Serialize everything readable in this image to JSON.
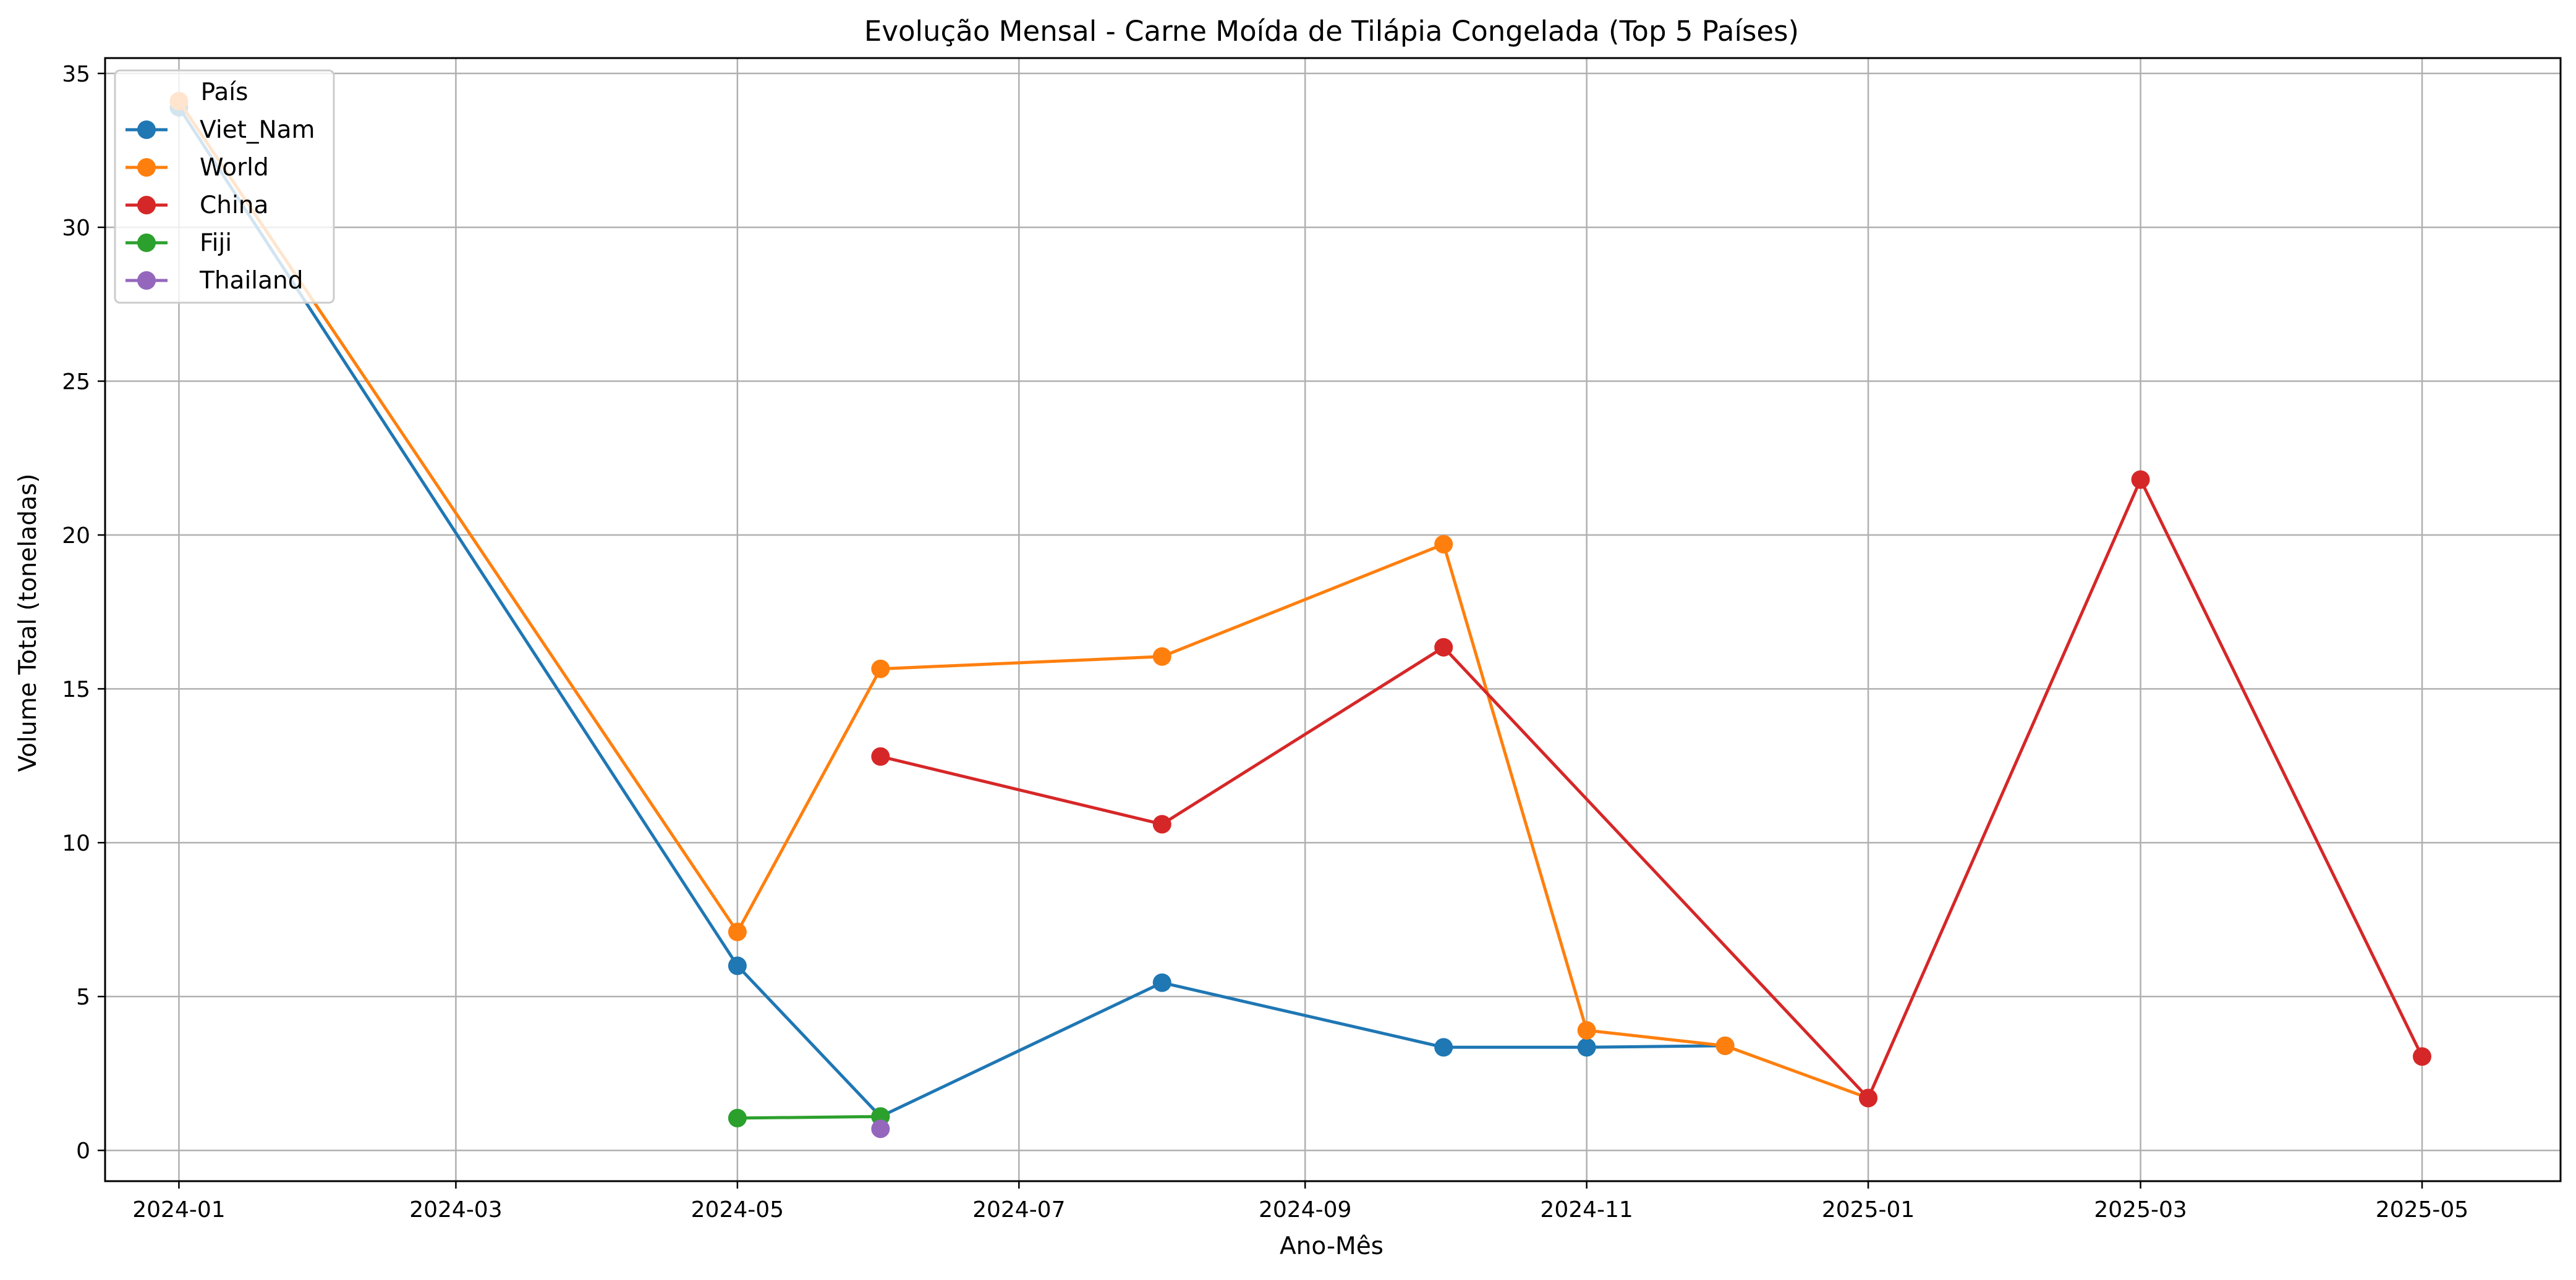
{
  "chart_data": {
    "type": "line",
    "title": "Evolução Mensal - Carne Moída de Tilápia Congelada (Top 5 Países)",
    "xlabel": "Ano-Mês",
    "ylabel": "Volume Total (toneladas)",
    "xlim": [
      "2023-12-16",
      "2025-05-31"
    ],
    "ylim": [
      -1,
      35.5
    ],
    "x_ticks": [
      "2024-01",
      "2024-03",
      "2024-05",
      "2024-07",
      "2024-09",
      "2024-11",
      "2025-01",
      "2025-03",
      "2025-05"
    ],
    "y_ticks": [
      0,
      5,
      10,
      15,
      20,
      25,
      30,
      35
    ],
    "grid": true,
    "legend": {
      "title": "País",
      "placement": "top-left"
    },
    "series": [
      {
        "name": "Viet_Nam",
        "color": "#1f77b4",
        "points": [
          {
            "x": "2024-01",
            "y": 33.9
          },
          {
            "x": "2024-05",
            "y": 6.0
          },
          {
            "x": "2024-06",
            "y": 1.1
          },
          {
            "x": "2024-08",
            "y": 5.45
          },
          {
            "x": "2024-10",
            "y": 3.35
          },
          {
            "x": "2024-11",
            "y": 3.35
          },
          {
            "x": "2024-12",
            "y": 3.4
          }
        ]
      },
      {
        "name": "World",
        "color": "#ff7f0e",
        "points": [
          {
            "x": "2024-01",
            "y": 34.1
          },
          {
            "x": "2024-05",
            "y": 7.1
          },
          {
            "x": "2024-06",
            "y": 15.65
          },
          {
            "x": "2024-08",
            "y": 16.05
          },
          {
            "x": "2024-10",
            "y": 19.7
          },
          {
            "x": "2024-11",
            "y": 3.9
          },
          {
            "x": "2024-12",
            "y": 3.4
          },
          {
            "x": "2025-01",
            "y": 1.7
          }
        ]
      },
      {
        "name": "China",
        "color": "#d62728",
        "points": [
          {
            "x": "2024-06",
            "y": 12.8
          },
          {
            "x": "2024-08",
            "y": 10.6
          },
          {
            "x": "2024-10",
            "y": 16.35
          },
          {
            "x": "2025-01",
            "y": 1.7
          },
          {
            "x": "2025-03",
            "y": 21.8
          },
          {
            "x": "2025-05",
            "y": 3.05
          }
        ]
      },
      {
        "name": "Fiji",
        "color": "#2ca02c",
        "points": [
          {
            "x": "2024-05",
            "y": 1.05
          },
          {
            "x": "2024-06",
            "y": 1.1
          }
        ]
      },
      {
        "name": "Thailand",
        "color": "#9467bd",
        "points": [
          {
            "x": "2024-06",
            "y": 0.7
          }
        ]
      }
    ]
  }
}
